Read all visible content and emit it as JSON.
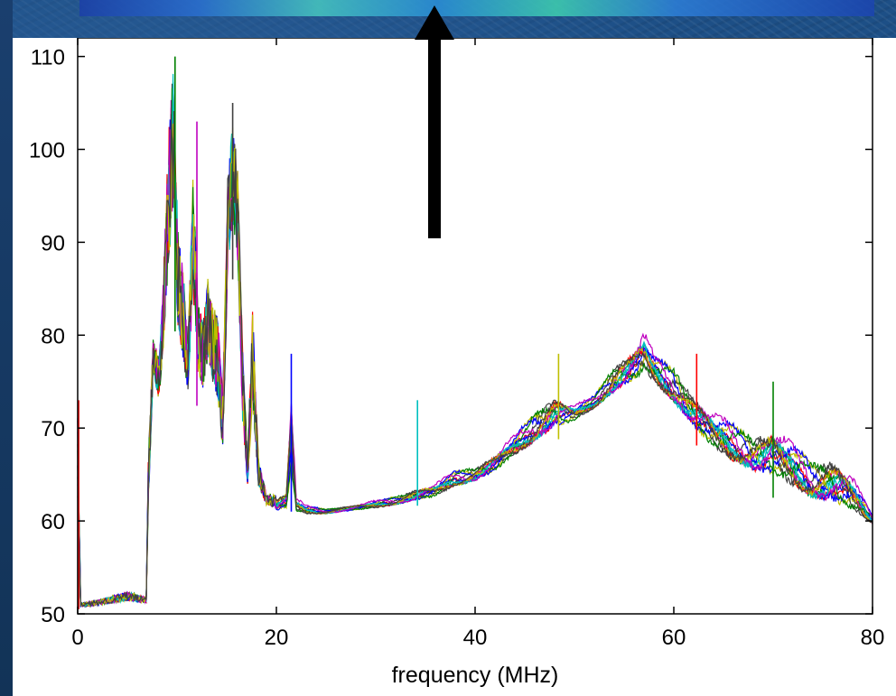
{
  "chart_data": {
    "type": "line",
    "title": "",
    "xlabel": "frequency (MHz)",
    "ylabel": "",
    "xlim": [
      0,
      80
    ],
    "ylim": [
      50,
      112
    ],
    "xticks": [
      "0",
      "20",
      "40",
      "60",
      "80"
    ],
    "yticks": [
      "50",
      "60",
      "70",
      "80",
      "90",
      "100",
      "110"
    ],
    "grid": false,
    "legend": "none",
    "series_colors": [
      "#ff0000",
      "#0000ff",
      "#008000",
      "#00bfbf",
      "#bf00bf",
      "#bfbf00",
      "#404040"
    ],
    "envelope": {
      "x": [
        0,
        0.3,
        2,
        5,
        6.9,
        7.1,
        7.6,
        8.2,
        8.6,
        9.1,
        9.6,
        10.1,
        10.6,
        11.1,
        11.6,
        12.1,
        12.6,
        13.1,
        13.6,
        14.1,
        14.6,
        15.1,
        15.6,
        16.1,
        16.6,
        17.1,
        17.6,
        18.2,
        19,
        20,
        21,
        21.5,
        22,
        23,
        25,
        27,
        30,
        32,
        34,
        36,
        38,
        40,
        42,
        44,
        46,
        48,
        50,
        52,
        54,
        56,
        57,
        58,
        60,
        62,
        64,
        66,
        68,
        70,
        72,
        74,
        76,
        78,
        80
      ],
      "upper": [
        73,
        51.2,
        51.5,
        52.5,
        51.8,
        67,
        80,
        78,
        86,
        102,
        110,
        92,
        88,
        80,
        98,
        85,
        82,
        87,
        84,
        83,
        74,
        98,
        104,
        99,
        79,
        67,
        84,
        67,
        63,
        63,
        64,
        78,
        63,
        62,
        61.5,
        61.8,
        62.5,
        63,
        64,
        64.5,
        66,
        66.5,
        68,
        70,
        73,
        75,
        73,
        74,
        78,
        80,
        82,
        79,
        78,
        75,
        73,
        72,
        71,
        72,
        70,
        68,
        69,
        66,
        61
      ],
      "lower": [
        50.5,
        50.5,
        50.6,
        50.8,
        50.8,
        58,
        74,
        70,
        74,
        79,
        84,
        75,
        72,
        70,
        78,
        71,
        70,
        72,
        70,
        68,
        64,
        80,
        86,
        82,
        66,
        62,
        66,
        62,
        61,
        60.5,
        60.5,
        61,
        60.3,
        60.3,
        60.5,
        60.8,
        61,
        61.3,
        61.6,
        62,
        63,
        63.5,
        64.5,
        66,
        67,
        68.5,
        70,
        71.5,
        72.5,
        73.5,
        74,
        73.5,
        71,
        68.5,
        66,
        64.5,
        63.5,
        62.5,
        61.5,
        60.5,
        59.8,
        59.5,
        59.2
      ]
    },
    "spikes": [
      {
        "x": 0.1,
        "y": 73
      },
      {
        "x": 9.8,
        "y": 110
      },
      {
        "x": 12.0,
        "y": 103
      },
      {
        "x": 15.6,
        "y": 105
      },
      {
        "x": 21.5,
        "y": 78
      },
      {
        "x": 34.2,
        "y": 73
      },
      {
        "x": 48.4,
        "y": 78
      },
      {
        "x": 62.3,
        "y": 78
      },
      {
        "x": 70.0,
        "y": 75
      }
    ]
  }
}
